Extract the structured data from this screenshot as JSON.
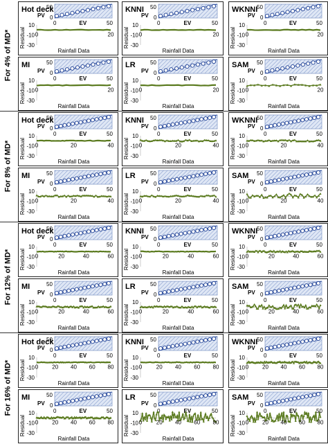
{
  "row_labels": [
    "For 4% of MD*",
    "For 8% of MD*",
    "For 12% of MD*",
    "For 16% of MD*"
  ],
  "colors": {
    "residual": "#5a7a1e",
    "pv_points": "#2f4f9e",
    "inset_fill": "#dfe7f5",
    "inset_hatch": "#7b93c8",
    "diag_line": "#2f4f9e"
  },
  "chart_data": [
    {
      "type": "line",
      "group": "For 4% of MD*",
      "method": "Hot deck",
      "x_ticks": [
        "0",
        "20"
      ],
      "y_ticks": [
        "10",
        "-10",
        "-30"
      ],
      "xlabel": "Rainfall Data",
      "ylabel": "Residual",
      "inset": {
        "type": "scatter",
        "xlabel": "EV",
        "ylabel": "PV",
        "x_ticks": [
          "0",
          "50"
        ],
        "y_ticks": [
          "50",
          "0"
        ]
      },
      "n": 20,
      "xlim": [
        0,
        20
      ],
      "ylim": [
        -30,
        10
      ],
      "residual": "flat"
    },
    {
      "type": "line",
      "group": "For 4% of MD*",
      "method": "KNNI",
      "x_ticks": [
        "0",
        "20"
      ],
      "y_ticks": [
        "10",
        "-10",
        "-30"
      ],
      "xlabel": "Rainfall Data",
      "ylabel": "Residual",
      "inset": {
        "type": "scatter",
        "xlabel": "EV",
        "ylabel": "PV",
        "x_ticks": [
          "0",
          "50"
        ],
        "y_ticks": [
          "50",
          "0"
        ]
      },
      "n": 20,
      "xlim": [
        0,
        20
      ],
      "ylim": [
        -30,
        10
      ],
      "residual": "flat"
    },
    {
      "type": "line",
      "group": "For 4% of MD*",
      "method": "WKNNI",
      "x_ticks": [
        "0",
        "20"
      ],
      "y_ticks": [
        "10",
        "-10",
        "-30"
      ],
      "xlabel": "Rainfall Data",
      "ylabel": "Residual",
      "inset": {
        "type": "scatter",
        "xlabel": "EV",
        "ylabel": "PV",
        "x_ticks": [
          "0",
          "50"
        ],
        "y_ticks": [
          "50",
          "0"
        ]
      },
      "n": 20,
      "xlim": [
        0,
        20
      ],
      "ylim": [
        -30,
        10
      ],
      "residual": "flat"
    },
    {
      "type": "line",
      "group": "For 4% of MD*",
      "method": "MI",
      "x_ticks": [
        "0",
        "20"
      ],
      "y_ticks": [
        "10",
        "-10",
        "-30"
      ],
      "xlabel": "Rainfall Data",
      "ylabel": "Residual",
      "inset": {
        "type": "scatter",
        "xlabel": "EV",
        "ylabel": "PV",
        "x_ticks": [
          "0",
          "50"
        ],
        "y_ticks": [
          "50",
          "0"
        ]
      },
      "n": 20,
      "xlim": [
        0,
        20
      ],
      "ylim": [
        -30,
        10
      ],
      "residual": "flat"
    },
    {
      "type": "line",
      "group": "For 4% of MD*",
      "method": "LR",
      "x_ticks": [
        "0",
        "20"
      ],
      "y_ticks": [
        "10",
        "-10",
        "-30"
      ],
      "xlabel": "Rainfall Data",
      "ylabel": "Residual",
      "inset": {
        "type": "scatter",
        "xlabel": "EV",
        "ylabel": "PV",
        "x_ticks": [
          "0",
          "50"
        ],
        "y_ticks": [
          "50",
          "0"
        ]
      },
      "n": 20,
      "xlim": [
        0,
        20
      ],
      "ylim": [
        -30,
        10
      ],
      "residual": "flat"
    },
    {
      "type": "line",
      "group": "For 4% of MD*",
      "method": "SAM",
      "x_ticks": [
        "0",
        "20"
      ],
      "y_ticks": [
        "10",
        "-10",
        "-30"
      ],
      "xlabel": "Rainfall Data",
      "ylabel": "Residual",
      "inset": {
        "type": "scatter",
        "xlabel": "EV",
        "ylabel": "PV",
        "x_ticks": [
          "0",
          "50"
        ],
        "y_ticks": [
          "50",
          "0"
        ]
      },
      "n": 20,
      "xlim": [
        0,
        20
      ],
      "ylim": [
        -30,
        10
      ],
      "residual": "small"
    },
    {
      "type": "line",
      "group": "For 8% of MD*",
      "method": "Hot deck",
      "x_ticks": [
        "0",
        "20",
        "40"
      ],
      "y_ticks": [
        "10",
        "-10",
        "-30"
      ],
      "xlabel": "Rainfall Data",
      "ylabel": "Residual",
      "inset": {
        "type": "scatter",
        "xlabel": "EV",
        "ylabel": "PV",
        "x_ticks": [
          "0",
          "50"
        ],
        "y_ticks": [
          "50",
          "0"
        ]
      },
      "n": 40,
      "xlim": [
        0,
        40
      ],
      "ylim": [
        -30,
        10
      ],
      "residual": "flat"
    },
    {
      "type": "line",
      "group": "For 8% of MD*",
      "method": "KNNI",
      "x_ticks": [
        "0",
        "20",
        "40"
      ],
      "y_ticks": [
        "10",
        "-10",
        "-30"
      ],
      "xlabel": "Rainfall Data",
      "ylabel": "Residual",
      "inset": {
        "type": "scatter",
        "xlabel": "EV",
        "ylabel": "PV",
        "x_ticks": [
          "0",
          "50"
        ],
        "y_ticks": [
          "50",
          "0"
        ]
      },
      "n": 40,
      "xlim": [
        0,
        40
      ],
      "ylim": [
        -30,
        10
      ],
      "residual": "small"
    },
    {
      "type": "line",
      "group": "For 8% of MD*",
      "method": "WKNNI",
      "x_ticks": [
        "0",
        "20",
        "40"
      ],
      "y_ticks": [
        "10",
        "-10",
        "-30"
      ],
      "xlabel": "Rainfall Data",
      "ylabel": "Residual",
      "inset": {
        "type": "scatter",
        "xlabel": "EV",
        "ylabel": "PV",
        "x_ticks": [
          "0",
          "50"
        ],
        "y_ticks": [
          "50",
          "0"
        ]
      },
      "n": 40,
      "xlim": [
        0,
        40
      ],
      "ylim": [
        -30,
        10
      ],
      "residual": "small"
    },
    {
      "type": "line",
      "group": "For 8% of MD*",
      "method": "MI",
      "x_ticks": [
        "0",
        "20",
        "40"
      ],
      "y_ticks": [
        "10",
        "-10",
        "-30"
      ],
      "xlabel": "Rainfall Data",
      "ylabel": "Residual",
      "inset": {
        "type": "scatter",
        "xlabel": "EV",
        "ylabel": "PV",
        "x_ticks": [
          "0",
          "50"
        ],
        "y_ticks": [
          "50",
          "0"
        ]
      },
      "n": 40,
      "xlim": [
        0,
        40
      ],
      "ylim": [
        -30,
        10
      ],
      "residual": "small"
    },
    {
      "type": "line",
      "group": "For 8% of MD*",
      "method": "LR",
      "x_ticks": [
        "0",
        "20",
        "40"
      ],
      "y_ticks": [
        "10",
        "-10",
        "-30"
      ],
      "xlabel": "Rainfall Data",
      "ylabel": "Residual",
      "inset": {
        "type": "scatter",
        "xlabel": "EV",
        "ylabel": "PV",
        "x_ticks": [
          "0",
          "50"
        ],
        "y_ticks": [
          "50",
          "0"
        ]
      },
      "n": 40,
      "xlim": [
        0,
        40
      ],
      "ylim": [
        -30,
        10
      ],
      "residual": "small"
    },
    {
      "type": "line",
      "group": "For 8% of MD*",
      "method": "SAM",
      "x_ticks": [
        "0",
        "20",
        "40"
      ],
      "y_ticks": [
        "10",
        "-10",
        "-30"
      ],
      "xlabel": "Rainfall Data",
      "ylabel": "Residual",
      "inset": {
        "type": "scatter",
        "xlabel": "EV",
        "ylabel": "PV",
        "x_ticks": [
          "0",
          "50"
        ],
        "y_ticks": [
          "50",
          "0"
        ]
      },
      "n": 40,
      "xlim": [
        0,
        40
      ],
      "ylim": [
        -30,
        10
      ],
      "residual": "medium"
    },
    {
      "type": "line",
      "group": "For 12% of MD*",
      "method": "Hot deck",
      "x_ticks": [
        "0",
        "20",
        "40",
        "60"
      ],
      "y_ticks": [
        "10",
        "-10",
        "-30"
      ],
      "xlabel": "Rainfall Data",
      "ylabel": "Residual",
      "inset": {
        "type": "scatter",
        "xlabel": "EV",
        "ylabel": "PV",
        "x_ticks": [
          "0",
          "50"
        ],
        "y_ticks": [
          "50",
          "0"
        ]
      },
      "n": 60,
      "xlim": [
        0,
        60
      ],
      "ylim": [
        -30,
        10
      ],
      "residual": "flat"
    },
    {
      "type": "line",
      "group": "For 12% of MD*",
      "method": "KNNI",
      "x_ticks": [
        "0",
        "20",
        "40",
        "60"
      ],
      "y_ticks": [
        "10",
        "-10",
        "-30"
      ],
      "xlabel": "Rainfall Data",
      "ylabel": "Residual",
      "inset": {
        "type": "scatter",
        "xlabel": "EV",
        "ylabel": "PV",
        "x_ticks": [
          "0",
          "50"
        ],
        "y_ticks": [
          "50",
          "0"
        ]
      },
      "n": 60,
      "xlim": [
        0,
        60
      ],
      "ylim": [
        -30,
        10
      ],
      "residual": "flat"
    },
    {
      "type": "line",
      "group": "For 12% of MD*",
      "method": "WKNNI",
      "x_ticks": [
        "0",
        "20",
        "40",
        "60"
      ],
      "y_ticks": [
        "10",
        "-10",
        "-30"
      ],
      "xlabel": "Rainfall Data",
      "ylabel": "Residual",
      "inset": {
        "type": "scatter",
        "xlabel": "EV",
        "ylabel": "PV",
        "x_ticks": [
          "0",
          "50"
        ],
        "y_ticks": [
          "50",
          "0"
        ]
      },
      "n": 60,
      "xlim": [
        0,
        60
      ],
      "ylim": [
        -30,
        10
      ],
      "residual": "small"
    },
    {
      "type": "line",
      "group": "For 12% of MD*",
      "method": "MI",
      "x_ticks": [
        "0",
        "20",
        "40",
        "60"
      ],
      "y_ticks": [
        "10",
        "-10",
        "-30"
      ],
      "xlabel": "Rainfall Data",
      "ylabel": "Residual",
      "inset": {
        "type": "scatter",
        "xlabel": "EV",
        "ylabel": "PV",
        "x_ticks": [
          "0",
          "50"
        ],
        "y_ticks": [
          "50",
          "0"
        ]
      },
      "n": 60,
      "xlim": [
        0,
        60
      ],
      "ylim": [
        -30,
        10
      ],
      "residual": "small"
    },
    {
      "type": "line",
      "group": "For 12% of MD*",
      "method": "LR",
      "x_ticks": [
        "0",
        "20",
        "40",
        "60"
      ],
      "y_ticks": [
        "10",
        "-10",
        "-30"
      ],
      "xlabel": "Rainfall Data",
      "ylabel": "Residual",
      "inset": {
        "type": "scatter",
        "xlabel": "EV",
        "ylabel": "PV",
        "x_ticks": [
          "0",
          "50"
        ],
        "y_ticks": [
          "50",
          "0"
        ]
      },
      "n": 60,
      "xlim": [
        0,
        60
      ],
      "ylim": [
        -30,
        10
      ],
      "residual": "small"
    },
    {
      "type": "line",
      "group": "For 12% of MD*",
      "method": "SAM",
      "x_ticks": [
        "0",
        "20",
        "40",
        "60"
      ],
      "y_ticks": [
        "10",
        "-10",
        "-30"
      ],
      "xlabel": "Rainfall Data",
      "ylabel": "Residual",
      "inset": {
        "type": "scatter",
        "xlabel": "EV",
        "ylabel": "PV",
        "x_ticks": [
          "0",
          "50"
        ],
        "y_ticks": [
          "50",
          "0"
        ]
      },
      "n": 60,
      "xlim": [
        0,
        60
      ],
      "ylim": [
        -30,
        10
      ],
      "residual": "medium"
    },
    {
      "type": "line",
      "group": "For 16% of MD*",
      "method": "Hot deck",
      "x_ticks": [
        "0",
        "20",
        "40",
        "60",
        "80"
      ],
      "y_ticks": [
        "10",
        "-10",
        "-30"
      ],
      "xlabel": "Rainfall Data",
      "ylabel": "Residual",
      "inset": {
        "type": "scatter",
        "xlabel": "EV",
        "ylabel": "PV",
        "x_ticks": [
          "0",
          "50"
        ],
        "y_ticks": [
          "50",
          "0"
        ]
      },
      "n": 80,
      "xlim": [
        0,
        80
      ],
      "ylim": [
        -30,
        10
      ],
      "residual": "flat"
    },
    {
      "type": "line",
      "group": "For 16% of MD*",
      "method": "KNNI",
      "x_ticks": [
        "0",
        "20",
        "40",
        "60",
        "80"
      ],
      "y_ticks": [
        "10",
        "-10",
        "-30"
      ],
      "xlabel": "Rainfall Data",
      "ylabel": "Residual",
      "inset": {
        "type": "scatter",
        "xlabel": "EV",
        "ylabel": "PV",
        "x_ticks": [
          "0",
          "50"
        ],
        "y_ticks": [
          "50",
          "0"
        ]
      },
      "n": 80,
      "xlim": [
        0,
        80
      ],
      "ylim": [
        -30,
        10
      ],
      "residual": "flat"
    },
    {
      "type": "line",
      "group": "For 16% of MD*",
      "method": "WKNNI",
      "x_ticks": [
        "0",
        "20",
        "40",
        "60",
        "80"
      ],
      "y_ticks": [
        "10",
        "-10",
        "-30"
      ],
      "xlabel": "Rainfall Data",
      "ylabel": "Residual",
      "inset": {
        "type": "scatter",
        "xlabel": "EV",
        "ylabel": "PV",
        "x_ticks": [
          "0",
          "50"
        ],
        "y_ticks": [
          "50",
          "0"
        ]
      },
      "n": 80,
      "xlim": [
        0,
        80
      ],
      "ylim": [
        -30,
        10
      ],
      "residual": "small"
    },
    {
      "type": "line",
      "group": "For 16% of MD*",
      "method": "MI",
      "x_ticks": [
        "0",
        "20",
        "40",
        "60",
        "80"
      ],
      "y_ticks": [
        "10",
        "-10",
        "-30"
      ],
      "xlabel": "Rainfall Data",
      "ylabel": "Residual",
      "inset": {
        "type": "scatter",
        "xlabel": "EV",
        "ylabel": "PV",
        "x_ticks": [
          "0",
          "50"
        ],
        "y_ticks": [
          "50",
          "0"
        ]
      },
      "n": 80,
      "xlim": [
        0,
        80
      ],
      "ylim": [
        -30,
        10
      ],
      "residual": "small"
    },
    {
      "type": "line",
      "group": "For 16% of MD*",
      "method": "LR",
      "x_ticks": [
        "0",
        "20",
        "40",
        "60",
        "80"
      ],
      "y_ticks": [
        "10",
        "-10",
        "-30"
      ],
      "xlabel": "Rainfall Data",
      "ylabel": "Residual",
      "inset": {
        "type": "scatter",
        "xlabel": "EV",
        "ylabel": "PV",
        "x_ticks": [
          "0",
          "50"
        ],
        "y_ticks": [
          "50",
          "0"
        ]
      },
      "n": 80,
      "xlim": [
        0,
        80
      ],
      "ylim": [
        -30,
        10
      ],
      "residual": "large"
    },
    {
      "type": "line",
      "group": "For 16% of MD*",
      "method": "SAM",
      "x_ticks": [
        "0",
        "20",
        "40",
        "60",
        "80"
      ],
      "y_ticks": [
        "10",
        "-10",
        "-30"
      ],
      "xlabel": "Rainfall Data",
      "ylabel": "Residual",
      "inset": {
        "type": "scatter",
        "xlabel": "EV",
        "ylabel": "PV",
        "x_ticks": [
          "0",
          "50"
        ],
        "y_ticks": [
          "50",
          "0"
        ]
      },
      "n": 80,
      "xlim": [
        0,
        80
      ],
      "ylim": [
        -30,
        10
      ],
      "residual": "large"
    }
  ]
}
